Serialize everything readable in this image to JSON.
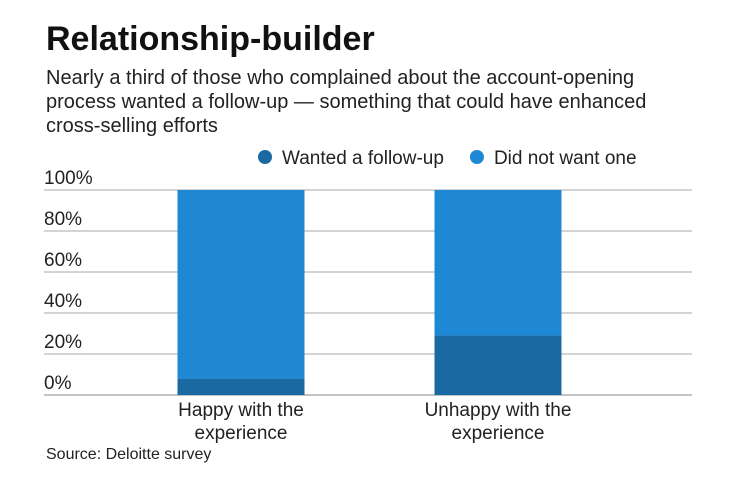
{
  "chart_data": {
    "type": "stacked_bar",
    "title": "Relationship-builder",
    "subtitle": "Nearly a third of those who complained about the account-opening process wanted a follow-up — something that could have enhanced cross-selling efforts",
    "source": "Source: Deloitte survey",
    "categories": [
      "Happy with the experience",
      "Unhappy with the experience"
    ],
    "series": [
      {
        "name": "Wanted a follow-up",
        "color": "#1b69a2",
        "values": [
          8,
          29
        ]
      },
      {
        "name": "Did not want one",
        "color": "#1e88d4",
        "values": [
          92,
          71
        ]
      }
    ],
    "ylim": [
      0,
      100
    ],
    "yticks": [
      {
        "value": 0,
        "label": "0%"
      },
      {
        "value": 20,
        "label": "20%"
      },
      {
        "value": 40,
        "label": "40%"
      },
      {
        "value": 60,
        "label": "60%"
      },
      {
        "value": 80,
        "label": "80%"
      },
      {
        "value": 100,
        "label": "100%"
      }
    ],
    "grid": true
  }
}
